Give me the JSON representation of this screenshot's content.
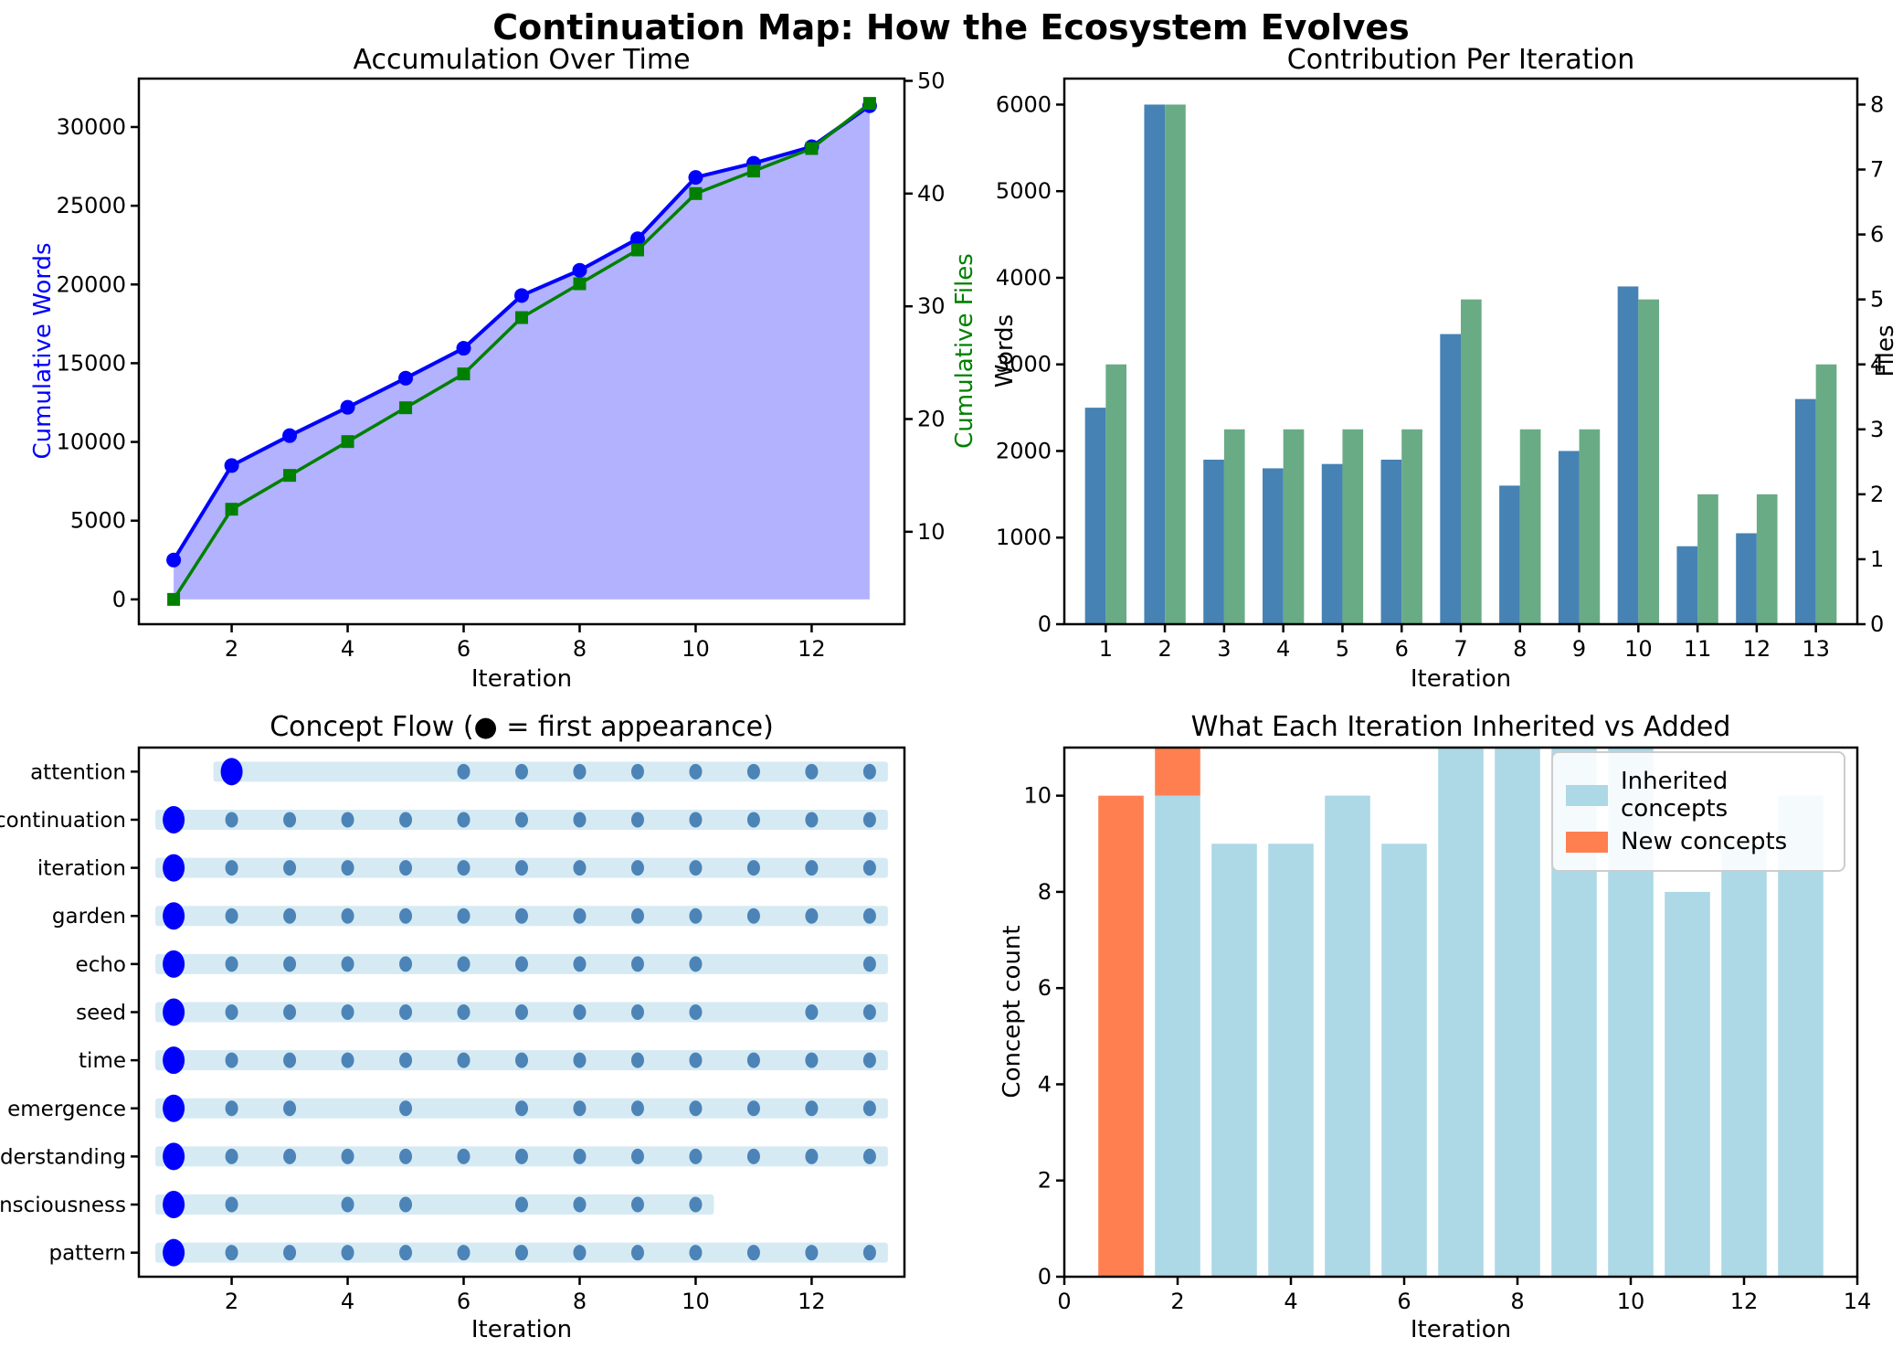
{
  "figure": {
    "title": "Continuation Map: How the Ecosystem Evolves",
    "background": "#ffffff"
  },
  "chart_data": [
    {
      "id": "accumulation-over-time",
      "type": "line",
      "title": "Accumulation Over Time",
      "xlabel": "Iteration",
      "ylabel_left": "Cumulative Words",
      "ylabel_right": "Cumulative Files",
      "x": [
        1,
        2,
        3,
        4,
        5,
        6,
        7,
        8,
        9,
        10,
        11,
        12,
        13
      ],
      "xticks": [
        2,
        4,
        6,
        8,
        10,
        12
      ],
      "yticks_left": [
        0,
        5000,
        10000,
        15000,
        20000,
        25000,
        30000
      ],
      "yticks_right": [
        10,
        20,
        30,
        40,
        50
      ],
      "xlim": [
        0.4,
        13.6
      ],
      "ylim_left": [
        -1575,
        33075
      ],
      "ylim_right": [
        1.8,
        50.2
      ],
      "grid": false,
      "axis_label_colors": {
        "left": "#0000ff",
        "right": "#008000"
      },
      "series": [
        {
          "name": "Cumulative Words",
          "axis": "left",
          "color": "#0000ff",
          "marker": "circle",
          "area_fill": "rgba(0,0,255,0.3)",
          "values": [
            2500,
            8500,
            10400,
            12200,
            14050,
            15950,
            19300,
            20900,
            22900,
            26800,
            27700,
            28750,
            31350
          ]
        },
        {
          "name": "Cumulative Files",
          "axis": "right",
          "color": "#008000",
          "marker": "square",
          "values": [
            4,
            12,
            15,
            18,
            21,
            24,
            29,
            32,
            35,
            40,
            42,
            44,
            48
          ]
        }
      ]
    },
    {
      "id": "contribution-per-iteration",
      "type": "bar",
      "title": "Contribution Per Iteration",
      "xlabel": "Iteration",
      "ylabel_left": "Words",
      "ylabel_right": "Files",
      "categories": [
        1,
        2,
        3,
        4,
        5,
        6,
        7,
        8,
        9,
        10,
        11,
        12,
        13
      ],
      "xticks": [
        1,
        2,
        3,
        4,
        5,
        6,
        7,
        8,
        9,
        10,
        11,
        12,
        13
      ],
      "yticks_left": [
        0,
        1000,
        2000,
        3000,
        4000,
        5000,
        6000
      ],
      "yticks_right": [
        0,
        1,
        2,
        3,
        4,
        5,
        6,
        7,
        8
      ],
      "xlim": [
        0.3,
        13.7
      ],
      "ylim_left": [
        0,
        6300
      ],
      "ylim_right": [
        0,
        8.4
      ],
      "grid": false,
      "bar_width": 0.35,
      "series": [
        {
          "name": "Words",
          "axis": "left",
          "color": "#4682b4",
          "values": [
            2500,
            6000,
            1900,
            1800,
            1850,
            1900,
            3350,
            1600,
            2000,
            3900,
            900,
            1050,
            2600
          ]
        },
        {
          "name": "Files",
          "axis": "right",
          "color": "#69ab85",
          "values": [
            4,
            8,
            3,
            3,
            3,
            3,
            5,
            3,
            3,
            5,
            2,
            2,
            4
          ]
        }
      ]
    },
    {
      "id": "concept-flow",
      "type": "timeline-scatter",
      "title": "Concept Flow (● = first appearance)",
      "xlabel": "Iteration",
      "xticks": [
        2,
        4,
        6,
        8,
        10,
        12
      ],
      "xlim": [
        0.4,
        13.6
      ],
      "colors": {
        "first_dot": "#0000ff",
        "dot": "#4c84b8",
        "band": "#d6eaf3"
      },
      "concepts": [
        {
          "label": "attention",
          "first": 2,
          "band": [
            2,
            13
          ],
          "present": [
            6,
            7,
            8,
            9,
            10,
            11,
            12,
            13
          ]
        },
        {
          "label": "continuation",
          "first": 1,
          "band": [
            1,
            13
          ],
          "present": [
            2,
            3,
            4,
            5,
            6,
            7,
            8,
            9,
            10,
            11,
            12,
            13
          ]
        },
        {
          "label": "iteration",
          "first": 1,
          "band": [
            1,
            13
          ],
          "present": [
            2,
            3,
            4,
            5,
            6,
            7,
            8,
            9,
            10,
            11,
            12,
            13
          ]
        },
        {
          "label": "garden",
          "first": 1,
          "band": [
            1,
            13
          ],
          "present": [
            2,
            3,
            4,
            5,
            6,
            7,
            8,
            9,
            10,
            11,
            12,
            13
          ]
        },
        {
          "label": "echo",
          "first": 1,
          "band": [
            1,
            13
          ],
          "present": [
            2,
            3,
            4,
            5,
            6,
            7,
            8,
            9,
            10,
            13
          ]
        },
        {
          "label": "seed",
          "first": 1,
          "band": [
            1,
            13
          ],
          "present": [
            2,
            3,
            4,
            5,
            6,
            7,
            8,
            9,
            10,
            12,
            13
          ]
        },
        {
          "label": "time",
          "first": 1,
          "band": [
            1,
            13
          ],
          "present": [
            2,
            3,
            4,
            5,
            6,
            7,
            8,
            9,
            10,
            11,
            12,
            13
          ]
        },
        {
          "label": "emergence",
          "first": 1,
          "band": [
            1,
            13
          ],
          "present": [
            2,
            3,
            5,
            7,
            8,
            9,
            10,
            11,
            12,
            13
          ]
        },
        {
          "label": "understanding",
          "first": 1,
          "band": [
            1,
            13
          ],
          "present": [
            2,
            3,
            4,
            5,
            6,
            7,
            8,
            9,
            10,
            11,
            12,
            13
          ]
        },
        {
          "label": "consciousness",
          "first": 1,
          "band": [
            1,
            10
          ],
          "present": [
            2,
            4,
            5,
            7,
            8,
            9,
            10
          ]
        },
        {
          "label": "pattern",
          "first": 1,
          "band": [
            1,
            13
          ],
          "present": [
            2,
            3,
            4,
            5,
            6,
            7,
            8,
            9,
            10,
            11,
            12,
            13
          ]
        }
      ]
    },
    {
      "id": "inherited-vs-added",
      "type": "stacked-bar",
      "title": "What Each Iteration Inherited vs Added",
      "xlabel": "Iteration",
      "ylabel": "Concept count",
      "categories": [
        1,
        2,
        3,
        4,
        5,
        6,
        7,
        8,
        9,
        10,
        11,
        12,
        13
      ],
      "xticks": [
        0,
        2,
        4,
        6,
        8,
        10,
        12,
        14
      ],
      "yticks": [
        0,
        2,
        4,
        6,
        8,
        10
      ],
      "xlim": [
        0,
        14
      ],
      "ylim": [
        0,
        11
      ],
      "grid": false,
      "bar_width": 0.8,
      "legend_position": "upper right",
      "series": [
        {
          "name": "Inherited concepts",
          "color": "#add8e6",
          "values": [
            0,
            10,
            9,
            9,
            10,
            9,
            11,
            11,
            11,
            11,
            8,
            9,
            10
          ]
        },
        {
          "name": "New concepts",
          "color": "#ff7f50",
          "values": [
            10,
            1,
            0,
            0,
            0,
            0,
            0,
            0,
            0,
            0,
            0,
            0,
            0
          ]
        }
      ]
    }
  ]
}
